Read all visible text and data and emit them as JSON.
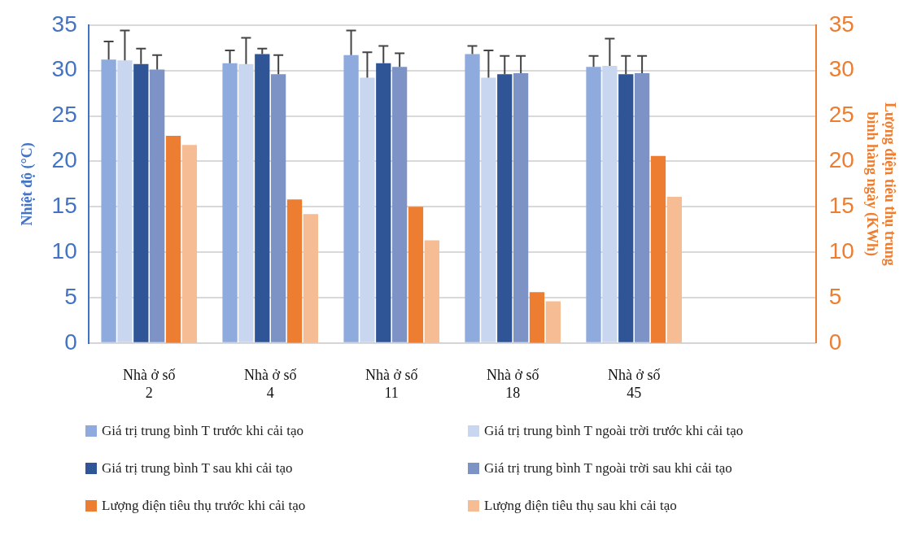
{
  "chart_data": {
    "type": "bar",
    "ylabel": "Nhiệt độ (°C)",
    "y2label": "Lượng điện tiêu thụ trung bình hàng ngày (KWh)",
    "categories": [
      "Nhà ở số 2",
      "Nhà ở số 4",
      "Nhà ở số 11",
      "Nhà ở số 18",
      "Nhà ở số 45",
      null
    ],
    "ylim": [
      0,
      35
    ],
    "yticks": [
      0,
      5,
      10,
      15,
      20,
      25,
      30,
      35
    ],
    "y2lim": [
      0,
      35
    ],
    "y2ticks": [
      0,
      5,
      10,
      15,
      20,
      25,
      30,
      35
    ],
    "grid": "y",
    "legend": "bottom",
    "series": [
      {
        "name": "Giá trị trung bình T trước khi cải tạo",
        "color": "#8faadc",
        "values": [
          31.2,
          30.8,
          31.7,
          31.8,
          30.4,
          null
        ],
        "errors": [
          [
            31.2,
            33.2
          ],
          [
            30.8,
            32.2
          ],
          [
            31.7,
            34.4
          ],
          [
            31.8,
            32.7
          ],
          [
            30.4,
            31.6
          ],
          null
        ]
      },
      {
        "name": "Giá trị trung bình T ngoài trời trước khi cải tạo",
        "color": "#c9d6ef",
        "values": [
          31.1,
          30.7,
          29.2,
          29.2,
          30.5,
          null
        ],
        "errors": [
          [
            31.1,
            34.4
          ],
          [
            30.7,
            33.6
          ],
          [
            29.2,
            32.0
          ],
          [
            29.2,
            32.2
          ],
          [
            30.5,
            33.5
          ],
          null
        ]
      },
      {
        "name": "Giá trị trung bình T sau khi cải tạo",
        "color": "#2f5597",
        "values": [
          30.7,
          31.8,
          30.8,
          29.6,
          29.6,
          null
        ],
        "errors": [
          [
            30.7,
            32.4
          ],
          [
            31.8,
            32.4
          ],
          [
            30.8,
            32.7
          ],
          [
            29.6,
            31.6
          ],
          [
            29.6,
            31.6
          ],
          null
        ]
      },
      {
        "name": "Giá trị trung bình T ngoài trời sau khi cải tạo",
        "color": "#7d93c6",
        "values": [
          30.1,
          29.6,
          30.4,
          29.7,
          29.7,
          null
        ],
        "errors": [
          [
            30.1,
            31.7
          ],
          [
            29.6,
            31.7
          ],
          [
            30.4,
            31.9
          ],
          [
            29.7,
            31.6
          ],
          [
            29.7,
            31.6
          ],
          null
        ]
      },
      {
        "name": "Lượng điện tiêu thụ trước khi cải tạo",
        "color": "#ed7d31",
        "axis": "y2",
        "values": [
          22.8,
          15.8,
          15.0,
          5.6,
          20.6,
          null
        ]
      },
      {
        "name": "Lượng điện tiêu thụ sau khi cải tạo",
        "color": "#f6bd94",
        "axis": "y2",
        "values": [
          21.8,
          14.2,
          11.3,
          4.6,
          16.1,
          null
        ]
      }
    ]
  }
}
